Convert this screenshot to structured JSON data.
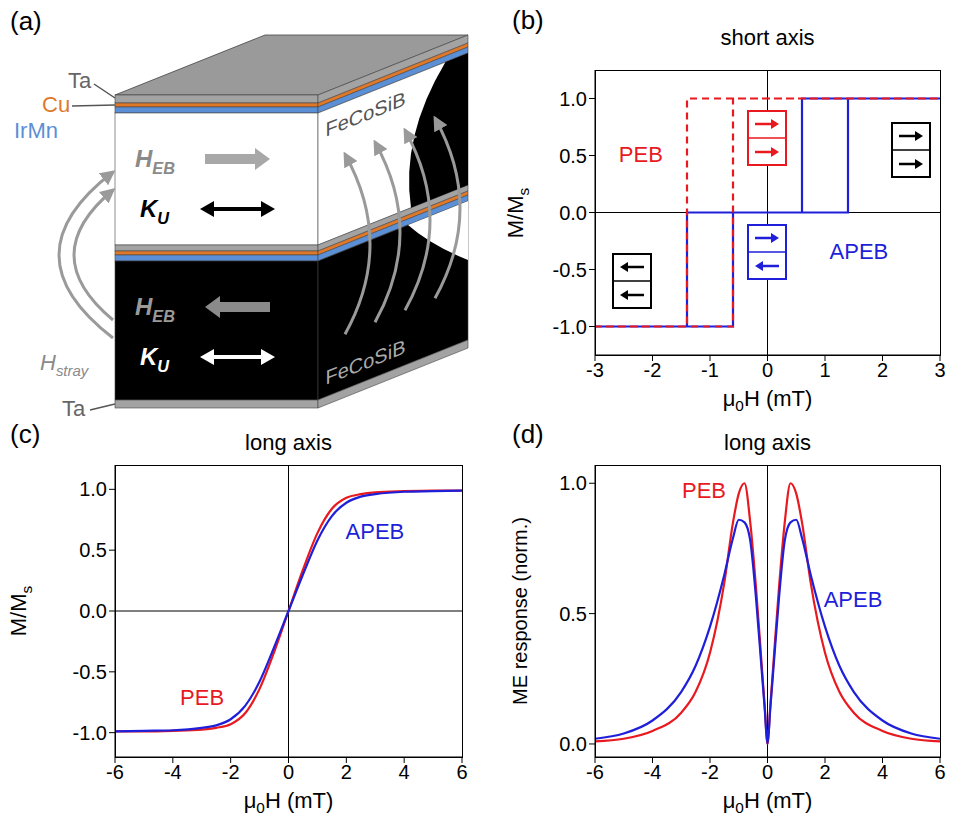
{
  "diagram": {
    "panel": "(a)",
    "layer_labels": {
      "cap": "Ta",
      "spacer": "Cu",
      "antiferromagnet": "IrMn",
      "buffer": "Ta"
    },
    "magnetic_layers": [
      {
        "material": "FeCoSiB",
        "exchange_bias": [
          "H",
          "EB"
        ],
        "exchange_bias_direction": "right",
        "anisotropy": [
          "K",
          "U"
        ]
      },
      {
        "material": "FeCoSiB",
        "exchange_bias": [
          "H",
          "EB"
        ],
        "exchange_bias_direction": "left",
        "anisotropy": [
          "K",
          "U"
        ]
      }
    ],
    "stray_field": [
      "H",
      "stray"
    ]
  },
  "chart_data": [
    {
      "panel": "(b)",
      "type": "line",
      "title": "short axis",
      "x_label": [
        "μ",
        "0",
        "H (mT)"
      ],
      "y_label": [
        "M/M",
        "s"
      ],
      "xlim": [
        -3,
        3
      ],
      "xticks": [
        -3,
        -2,
        -1,
        0,
        1,
        2,
        3
      ],
      "ylim": [
        -1.25,
        1.25
      ],
      "yticks": [
        {
          "value": -1,
          "label": "-1.0"
        },
        -0.5,
        {
          "value": 0,
          "label": "0.0"
        },
        0.5,
        {
          "value": 1,
          "label": "1.0"
        }
      ],
      "reference_lines": {
        "x": 0,
        "y": 0
      },
      "series": [
        {
          "name": "APEB",
          "color": "#1f1fd9",
          "line_style": "solid",
          "x": [
            -3,
            -0.6,
            -0.6,
            1.4,
            1.4,
            3,
            0.6,
            0.6,
            -1.4,
            -1.4,
            -3
          ],
          "values": [
            -1,
            -1,
            0,
            0,
            1,
            1,
            1,
            0,
            0,
            -1,
            -1
          ]
        },
        {
          "name": "PEB",
          "color": "#e8191f",
          "line_style": "dashed",
          "x": [
            -3,
            -0.6,
            -0.6,
            3,
            -1.4,
            -1.4,
            -3
          ],
          "values": [
            -1,
            -1,
            1,
            1,
            1,
            -1,
            -1
          ]
        }
      ]
    },
    {
      "panel": "(c)",
      "type": "line",
      "title": "long axis",
      "x_label": [
        "μ",
        "0",
        "H (mT)"
      ],
      "y_label": [
        "M/M",
        "s"
      ],
      "xlim": [
        -6,
        6
      ],
      "xticks": [
        -6,
        -4,
        -2,
        0,
        2,
        4,
        6
      ],
      "ylim": [
        -1.2,
        1.2
      ],
      "yticks": [
        {
          "value": -1,
          "label": "-1.0"
        },
        -0.5,
        {
          "value": 0,
          "label": "0.0"
        },
        0.5,
        {
          "value": 1,
          "label": "1.0"
        }
      ],
      "reference_lines": {
        "x": 0,
        "y": 0
      },
      "x": [
        -6,
        -5,
        -4,
        -3,
        -2.5,
        -2,
        -1.5,
        -1,
        -0.5,
        0,
        0.5,
        1,
        1.5,
        2,
        2.5,
        3,
        4,
        5,
        6
      ],
      "series": [
        {
          "name": "PEB",
          "color": "#e8191f",
          "line_style": "solid",
          "values": [
            -0.99,
            -0.99,
            -0.985,
            -0.975,
            -0.96,
            -0.93,
            -0.84,
            -0.64,
            -0.34,
            0,
            0.34,
            0.64,
            0.84,
            0.93,
            0.96,
            0.975,
            0.985,
            0.99,
            0.99
          ]
        },
        {
          "name": "APEB",
          "color": "#1f1fd9",
          "line_style": "solid",
          "values": [
            -0.99,
            -0.985,
            -0.98,
            -0.96,
            -0.94,
            -0.89,
            -0.78,
            -0.58,
            -0.3,
            0,
            0.3,
            0.58,
            0.78,
            0.89,
            0.94,
            0.96,
            0.98,
            0.985,
            0.99
          ]
        }
      ]
    },
    {
      "panel": "(d)",
      "type": "line",
      "title": "long axis",
      "x_label": [
        "μ",
        "0",
        "H (mT)"
      ],
      "y_label": [
        "ME response (norm.)"
      ],
      "xlim": [
        -6,
        6
      ],
      "xticks": [
        -6,
        -4,
        -2,
        0,
        2,
        4,
        6
      ],
      "ylim": [
        -0.05,
        1.07
      ],
      "yticks": [
        {
          "value": 0,
          "label": "0.0"
        },
        0.5,
        {
          "value": 1,
          "label": "1.0"
        }
      ],
      "reference_lines": {
        "x": 0
      },
      "x": [
        -6,
        -5,
        -4,
        -3,
        -2.5,
        -2,
        -1.5,
        -1.2,
        -1,
        -0.8,
        -0.6,
        -0.4,
        -0.2,
        -0.1,
        0,
        0.1,
        0.2,
        0.4,
        0.6,
        0.8,
        1,
        1.2,
        1.5,
        2,
        2.5,
        3,
        4,
        5,
        6
      ],
      "series": [
        {
          "name": "PEB",
          "color": "#e8191f",
          "line_style": "solid",
          "values": [
            0.01,
            0.02,
            0.05,
            0.12,
            0.2,
            0.35,
            0.62,
            0.85,
            0.96,
            1.0,
            0.85,
            0.6,
            0.3,
            0.15,
            0,
            0.15,
            0.3,
            0.6,
            0.85,
            1.0,
            0.96,
            0.85,
            0.62,
            0.35,
            0.2,
            0.12,
            0.05,
            0.02,
            0.01
          ]
        },
        {
          "name": "APEB",
          "color": "#1f1fd9",
          "line_style": "solid",
          "values": [
            0.02,
            0.04,
            0.09,
            0.2,
            0.3,
            0.45,
            0.65,
            0.79,
            0.86,
            0.85,
            0.78,
            0.56,
            0.28,
            0.14,
            0,
            0.14,
            0.28,
            0.56,
            0.78,
            0.85,
            0.86,
            0.79,
            0.65,
            0.45,
            0.3,
            0.2,
            0.09,
            0.04,
            0.02
          ]
        }
      ]
    }
  ]
}
